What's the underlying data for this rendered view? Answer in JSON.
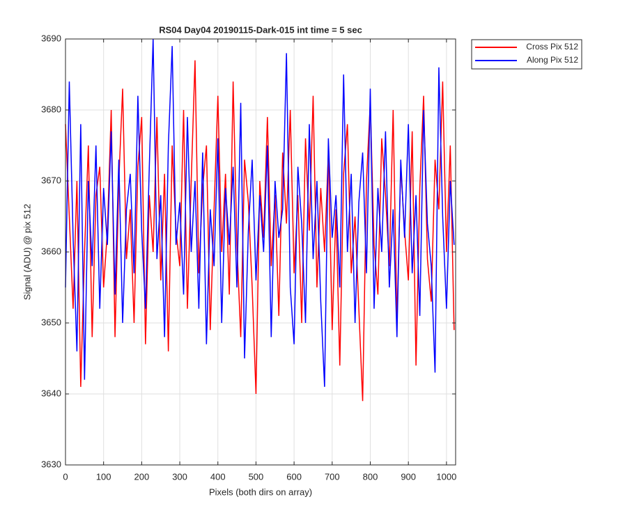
{
  "chart_data": {
    "type": "line",
    "title": "RS04 Day04 20190115-Dark-015 int time = 5 sec",
    "xlabel": "Pixels (both dirs on array)",
    "ylabel": "Signal (ADU) @ pix 512",
    "x": [
      0,
      10,
      20,
      30,
      40,
      50,
      60,
      70,
      80,
      90,
      100,
      110,
      120,
      130,
      140,
      150,
      160,
      170,
      180,
      190,
      200,
      210,
      220,
      230,
      240,
      250,
      260,
      270,
      280,
      290,
      300,
      310,
      320,
      330,
      340,
      350,
      360,
      370,
      380,
      390,
      400,
      410,
      420,
      430,
      440,
      450,
      460,
      470,
      480,
      490,
      500,
      510,
      520,
      530,
      540,
      550,
      560,
      570,
      580,
      590,
      600,
      610,
      620,
      630,
      640,
      650,
      660,
      670,
      680,
      690,
      700,
      710,
      720,
      730,
      740,
      750,
      760,
      770,
      780,
      790,
      800,
      810,
      820,
      830,
      840,
      850,
      860,
      870,
      880,
      890,
      900,
      910,
      920,
      930,
      940,
      950,
      960,
      970,
      980,
      990,
      1000,
      1010,
      1020
    ],
    "series": [
      {
        "name": "Cross Pix 512",
        "color": "#ff0000",
        "values": [
          3678,
          3665,
          3652,
          3670,
          3641,
          3660,
          3675,
          3648,
          3668,
          3672,
          3655,
          3663,
          3680,
          3648,
          3670,
          3683,
          3659,
          3666,
          3650,
          3672,
          3679,
          3647,
          3668,
          3660,
          3679,
          3656,
          3671,
          3646,
          3675,
          3663,
          3658,
          3680,
          3652,
          3670,
          3687,
          3657,
          3669,
          3675,
          3649,
          3666,
          3682,
          3660,
          3671,
          3654,
          3684,
          3661,
          3648,
          3673,
          3667,
          3655,
          3640,
          3670,
          3662,
          3679,
          3658,
          3668,
          3651,
          3674,
          3664,
          3680,
          3657,
          3668,
          3650,
          3676,
          3663,
          3682,
          3655,
          3669,
          3660,
          3674,
          3649,
          3666,
          3644,
          3671,
          3678,
          3657,
          3665,
          3652,
          3639,
          3670,
          3681,
          3661,
          3654,
          3676,
          3668,
          3658,
          3680,
          3650,
          3672,
          3663,
          3656,
          3677,
          3644,
          3669,
          3682,
          3659,
          3653,
          3673,
          3666,
          3684,
          3660,
          3675,
          3649
        ]
      },
      {
        "name": "Along Pix 512",
        "color": "#0000ff",
        "values": [
          3655,
          3684,
          3662,
          3646,
          3678,
          3642,
          3670,
          3658,
          3675,
          3652,
          3669,
          3661,
          3677,
          3654,
          3673,
          3650,
          3666,
          3671,
          3657,
          3682,
          3663,
          3652,
          3672,
          3690,
          3659,
          3668,
          3648,
          3675,
          3689,
          3661,
          3667,
          3654,
          3679,
          3660,
          3670,
          3652,
          3674,
          3647,
          3666,
          3658,
          3676,
          3650,
          3669,
          3661,
          3672,
          3655,
          3681,
          3645,
          3663,
          3673,
          3656,
          3668,
          3660,
          3675,
          3648,
          3670,
          3662,
          3666,
          3688,
          3655,
          3647,
          3672,
          3664,
          3650,
          3678,
          3659,
          3670,
          3653,
          3641,
          3676,
          3662,
          3668,
          3655,
          3685,
          3660,
          3671,
          3650,
          3667,
          3674,
          3657,
          3683,
          3652,
          3669,
          3660,
          3677,
          3655,
          3666,
          3648,
          3673,
          3662,
          3678,
          3657,
          3668,
          3651,
          3680,
          3664,
          3658,
          3643,
          3686,
          3665,
          3652,
          3670,
          3661
        ]
      }
    ],
    "xlim": [
      0,
      1024
    ],
    "ylim": [
      3630,
      3690
    ],
    "xticks": [
      0,
      100,
      200,
      300,
      400,
      500,
      600,
      700,
      800,
      900,
      1000
    ],
    "yticks": [
      3630,
      3640,
      3650,
      3660,
      3670,
      3680,
      3690
    ],
    "grid": true,
    "legend": "outside-top-right"
  }
}
